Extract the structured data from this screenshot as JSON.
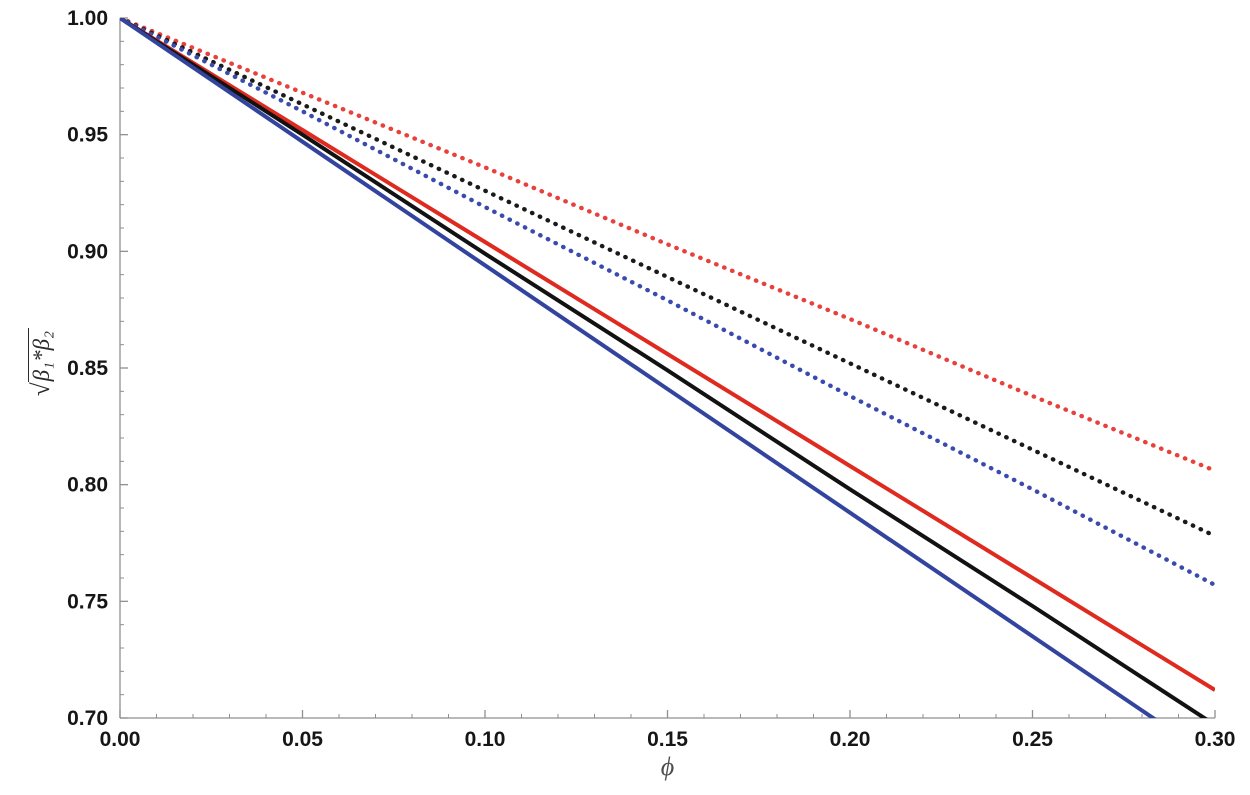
{
  "chart_data": {
    "type": "line",
    "title": "",
    "xlabel": "ϕ",
    "ylabel": "√(β₁*β₂)",
    "ylabel_radical": "√",
    "ylabel_radicand": "β₁*β₂",
    "xlim": [
      0.0,
      0.3
    ],
    "ylim": [
      0.7,
      1.0
    ],
    "grid": false,
    "legend": null,
    "xticks": {
      "major": [
        0.0,
        0.05,
        0.1,
        0.15,
        0.2,
        0.25,
        0.3
      ],
      "labels": [
        "0.00",
        "0.05",
        "0.10",
        "0.15",
        "0.20",
        "0.25",
        "0.30"
      ],
      "minor_step": 0.01
    },
    "yticks": {
      "major": [
        0.7,
        0.75,
        0.8,
        0.85,
        0.9,
        0.95,
        1.0
      ],
      "labels": [
        "0.70",
        "0.75",
        "0.80",
        "0.85",
        "0.90",
        "0.95",
        "1.00"
      ],
      "minor_step": 0.01
    },
    "x": [
      0.0,
      0.05,
      0.1,
      0.15,
      0.2,
      0.25,
      0.3
    ],
    "series": [
      {
        "name": "dotted-red",
        "color": "#E8413C",
        "style": "dotted",
        "values": [
          1.0,
          0.968,
          0.936,
          0.903,
          0.871,
          0.838,
          0.806
        ]
      },
      {
        "name": "dotted-black",
        "color": "#1A1A1A",
        "style": "dotted",
        "values": [
          1.0,
          0.963,
          0.926,
          0.889,
          0.852,
          0.815,
          0.778
        ]
      },
      {
        "name": "dotted-blue",
        "color": "#3A4BAD",
        "style": "dotted",
        "values": [
          1.0,
          0.96,
          0.919,
          0.879,
          0.838,
          0.798,
          0.757
        ]
      },
      {
        "name": "solid-red",
        "color": "#DE2A1F",
        "style": "solid",
        "values": [
          1.0,
          0.952,
          0.904,
          0.856,
          0.808,
          0.76,
          0.712
        ]
      },
      {
        "name": "solid-black",
        "color": "#121212",
        "style": "solid",
        "values": [
          1.0,
          0.95,
          0.899,
          0.849,
          0.798,
          0.748,
          0.697
        ]
      },
      {
        "name": "solid-blue",
        "color": "#33449F",
        "style": "solid",
        "values": [
          1.0,
          0.947,
          0.894,
          0.841,
          0.788,
          0.735,
          0.682
        ]
      }
    ]
  },
  "colors": {
    "axis": "#8F8F8F",
    "tick": "#8F8F8F",
    "tick_label": "#161616",
    "x_label": "#4D4D4D",
    "y_label": "#2B2B2B",
    "background": "#FFFFFF"
  }
}
